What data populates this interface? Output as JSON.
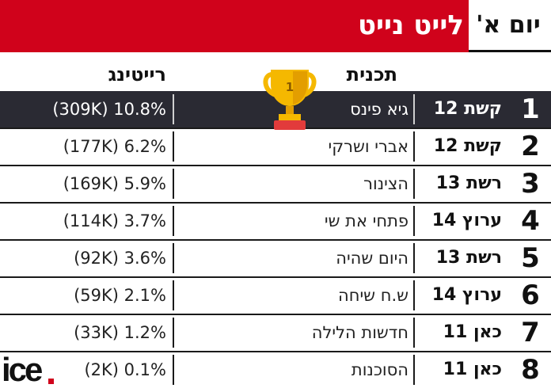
{
  "header": {
    "title": "לייט נייט",
    "day": "יום א'"
  },
  "columns": {
    "rating": "רייטינג",
    "show": "תכנית"
  },
  "trophy": {
    "number": "1"
  },
  "rows": [
    {
      "rank": "1",
      "channel": "קשת 12",
      "show": "גיא פינס",
      "rating": "(309K) 10.8%"
    },
    {
      "rank": "2",
      "channel": "קשת 12",
      "show": "אברי ושרקי",
      "rating": "(177K) 6.2%"
    },
    {
      "rank": "3",
      "channel": "רשת 13",
      "show": "הצינור",
      "rating": "(169K) 5.9%"
    },
    {
      "rank": "4",
      "channel": "ערוץ 14",
      "show": "פתחי את שי",
      "rating": "(114K) 3.7%"
    },
    {
      "rank": "5",
      "channel": "רשת 13",
      "show": "היום שהיה",
      "rating": "(92K) 3.6%"
    },
    {
      "rank": "6",
      "channel": "ערוץ 14",
      "show": "ש.ח שיחה",
      "rating": "(59K) 2.1%"
    },
    {
      "rank": "7",
      "channel": "כאן 11",
      "show": "חדשות הלילה",
      "rating": "(33K) 1.2%"
    },
    {
      "rank": "8",
      "channel": "כאן 11",
      "show": "הסוכנות",
      "rating": "(2K) 0.1%"
    }
  ],
  "logo": {
    "text": "ice"
  },
  "colors": {
    "accent": "#d0021b",
    "highlight_row": "#2a2a33",
    "trophy": "#f5b800"
  }
}
